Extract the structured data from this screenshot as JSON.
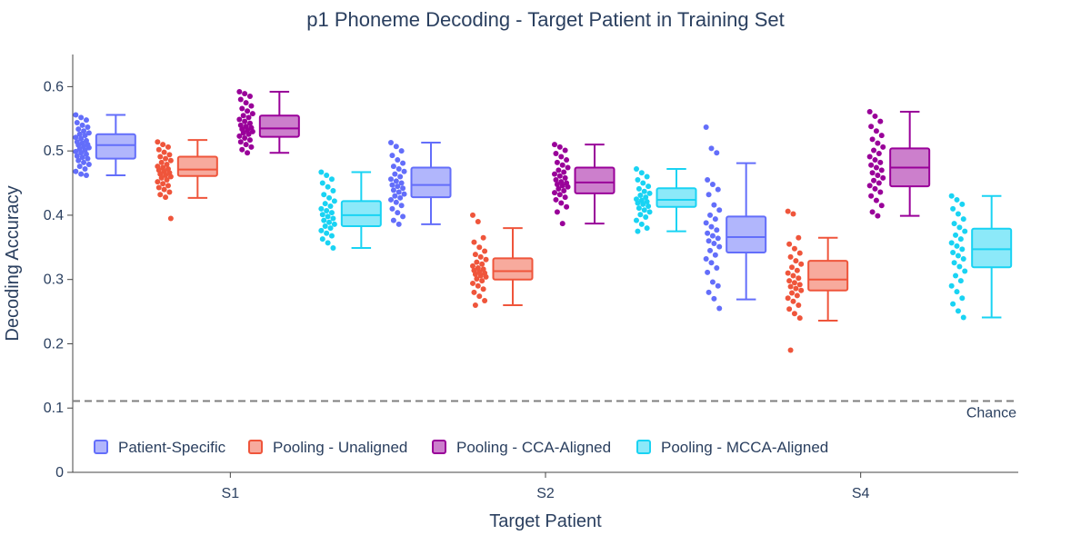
{
  "chart_data": {
    "type": "box",
    "title": "p1 Phoneme Decoding - Target Patient in Training Set",
    "xlabel": "Target Patient",
    "ylabel": "Decoding Accuracy",
    "categories": [
      "S1",
      "S2",
      "S4"
    ],
    "ylim": [
      0,
      0.65
    ],
    "yticks": [
      0,
      0.1,
      0.2,
      0.3,
      0.4,
      0.5,
      0.6
    ],
    "ytick_labels": [
      "0",
      "0.1",
      "0.2",
      "0.3",
      "0.4",
      "0.5",
      "0.6"
    ],
    "grid": false,
    "legend_position": "bottom-left",
    "reference_line": {
      "value": 0.111,
      "label": "Chance",
      "color": "#7f7f7f",
      "style": "dashed"
    },
    "series": [
      {
        "name": "Patient-Specific",
        "color": "#636efa",
        "boxes": [
          {
            "category": "S1",
            "min": 0.462,
            "q1": 0.488,
            "median": 0.509,
            "q3": 0.526,
            "max": 0.556,
            "points": [
              0.556,
              0.552,
              0.548,
              0.544,
              0.54,
              0.537,
              0.534,
              0.531,
              0.528,
              0.526,
              0.524,
              0.521,
              0.519,
              0.516,
              0.514,
              0.512,
              0.51,
              0.509,
              0.507,
              0.505,
              0.503,
              0.501,
              0.499,
              0.497,
              0.495,
              0.492,
              0.49,
              0.488,
              0.485,
              0.482,
              0.479,
              0.476,
              0.472,
              0.468,
              0.464,
              0.462
            ]
          },
          {
            "category": "S2",
            "min": 0.386,
            "q1": 0.428,
            "median": 0.447,
            "q3": 0.474,
            "max": 0.513,
            "points": [
              0.513,
              0.507,
              0.5,
              0.493,
              0.486,
              0.481,
              0.476,
              0.472,
              0.468,
              0.464,
              0.46,
              0.456,
              0.453,
              0.45,
              0.447,
              0.445,
              0.442,
              0.439,
              0.436,
              0.433,
              0.43,
              0.427,
              0.424,
              0.42,
              0.415,
              0.41,
              0.404,
              0.398,
              0.392,
              0.386
            ]
          },
          {
            "category": "S4",
            "min": 0.269,
            "q1": 0.342,
            "median": 0.366,
            "q3": 0.398,
            "max": 0.481,
            "points": [
              0.537,
              0.504,
              0.497,
              0.455,
              0.448,
              0.44,
              0.432,
              0.416,
              0.408,
              0.4,
              0.394,
              0.388,
              0.382,
              0.377,
              0.372,
              0.368,
              0.364,
              0.36,
              0.356,
              0.351,
              0.345,
              0.338,
              0.332,
              0.326,
              0.318,
              0.311,
              0.296,
              0.29,
              0.28,
              0.27,
              0.255
            ]
          }
        ]
      },
      {
        "name": "Pooling - Unaligned",
        "color": "#ef553b",
        "boxes": [
          {
            "category": "S1",
            "min": 0.427,
            "q1": 0.461,
            "median": 0.471,
            "q3": 0.491,
            "max": 0.517,
            "points": [
              0.514,
              0.51,
              0.506,
              0.502,
              0.498,
              0.494,
              0.491,
              0.488,
              0.485,
              0.482,
              0.479,
              0.476,
              0.474,
              0.472,
              0.47,
              0.468,
              0.466,
              0.464,
              0.462,
              0.46,
              0.458,
              0.455,
              0.452,
              0.449,
              0.446,
              0.443,
              0.44,
              0.436,
              0.432,
              0.428,
              0.395
            ]
          },
          {
            "category": "S2",
            "min": 0.26,
            "q1": 0.3,
            "median": 0.313,
            "q3": 0.333,
            "max": 0.38,
            "points": [
              0.4,
              0.39,
              0.365,
              0.358,
              0.35,
              0.344,
              0.339,
              0.335,
              0.331,
              0.327,
              0.324,
              0.321,
              0.318,
              0.316,
              0.314,
              0.312,
              0.31,
              0.308,
              0.306,
              0.304,
              0.301,
              0.298,
              0.294,
              0.29,
              0.285,
              0.28,
              0.274,
              0.267,
              0.26
            ]
          },
          {
            "category": "S4",
            "min": 0.236,
            "q1": 0.283,
            "median": 0.3,
            "q3": 0.329,
            "max": 0.365,
            "points": [
              0.406,
              0.402,
              0.365,
              0.355,
              0.348,
              0.341,
              0.335,
              0.329,
              0.324,
              0.319,
              0.314,
              0.31,
              0.306,
              0.302,
              0.298,
              0.295,
              0.292,
              0.289,
              0.286,
              0.283,
              0.279,
              0.275,
              0.271,
              0.266,
              0.26,
              0.254,
              0.247,
              0.24,
              0.19
            ]
          }
        ]
      },
      {
        "name": "Pooling - CCA-Aligned",
        "color": "#990099",
        "boxes": [
          {
            "category": "S1",
            "min": 0.497,
            "q1": 0.522,
            "median": 0.535,
            "q3": 0.555,
            "max": 0.592,
            "points": [
              0.592,
              0.589,
              0.585,
              0.58,
              0.575,
              0.57,
              0.566,
              0.562,
              0.558,
              0.555,
              0.552,
              0.549,
              0.546,
              0.543,
              0.54,
              0.538,
              0.536,
              0.534,
              0.532,
              0.53,
              0.528,
              0.526,
              0.523,
              0.52,
              0.517,
              0.514,
              0.51,
              0.506,
              0.502,
              0.497
            ]
          },
          {
            "category": "S2",
            "min": 0.387,
            "q1": 0.434,
            "median": 0.451,
            "q3": 0.474,
            "max": 0.51,
            "points": [
              0.51,
              0.506,
              0.501,
              0.496,
              0.491,
              0.486,
              0.482,
              0.478,
              0.474,
              0.47,
              0.467,
              0.464,
              0.461,
              0.458,
              0.455,
              0.452,
              0.45,
              0.448,
              0.446,
              0.444,
              0.441,
              0.438,
              0.435,
              0.432,
              0.428,
              0.424,
              0.419,
              0.413,
              0.405,
              0.387
            ]
          },
          {
            "category": "S4",
            "min": 0.399,
            "q1": 0.445,
            "median": 0.474,
            "q3": 0.504,
            "max": 0.561,
            "points": [
              0.561,
              0.554,
              0.546,
              0.538,
              0.531,
              0.524,
              0.518,
              0.512,
              0.506,
              0.501,
              0.496,
              0.491,
              0.486,
              0.482,
              0.478,
              0.474,
              0.47,
              0.466,
              0.462,
              0.458,
              0.454,
              0.45,
              0.446,
              0.441,
              0.436,
              0.43,
              0.423,
              0.415,
              0.405,
              0.399
            ]
          }
        ]
      },
      {
        "name": "Pooling - MCCA-Aligned",
        "color": "#19d3f3",
        "boxes": [
          {
            "category": "S1",
            "min": 0.349,
            "q1": 0.383,
            "median": 0.4,
            "q3": 0.422,
            "max": 0.467,
            "points": [
              0.467,
              0.462,
              0.456,
              0.45,
              0.444,
              0.438,
              0.432,
              0.427,
              0.422,
              0.418,
              0.414,
              0.41,
              0.407,
              0.404,
              0.401,
              0.398,
              0.395,
              0.392,
              0.389,
              0.386,
              0.383,
              0.38,
              0.376,
              0.372,
              0.368,
              0.363,
              0.357,
              0.349
            ]
          },
          {
            "category": "S2",
            "min": 0.375,
            "q1": 0.413,
            "median": 0.424,
            "q3": 0.442,
            "max": 0.472,
            "points": [
              0.472,
              0.466,
              0.46,
              0.455,
              0.45,
              0.445,
              0.441,
              0.437,
              0.434,
              0.431,
              0.428,
              0.425,
              0.423,
              0.421,
              0.419,
              0.417,
              0.414,
              0.411,
              0.408,
              0.405,
              0.401,
              0.397,
              0.392,
              0.386,
              0.38,
              0.375
            ]
          },
          {
            "category": "S4",
            "min": 0.241,
            "q1": 0.319,
            "median": 0.347,
            "q3": 0.379,
            "max": 0.43,
            "points": [
              0.43,
              0.424,
              0.417,
              0.41,
              0.402,
              0.394,
              0.387,
              0.381,
              0.375,
              0.369,
              0.363,
              0.357,
              0.352,
              0.347,
              0.342,
              0.337,
              0.332,
              0.326,
              0.32,
              0.313,
              0.306,
              0.298,
              0.29,
              0.281,
              0.271,
              0.262,
              0.251,
              0.241
            ]
          }
        ]
      }
    ]
  }
}
